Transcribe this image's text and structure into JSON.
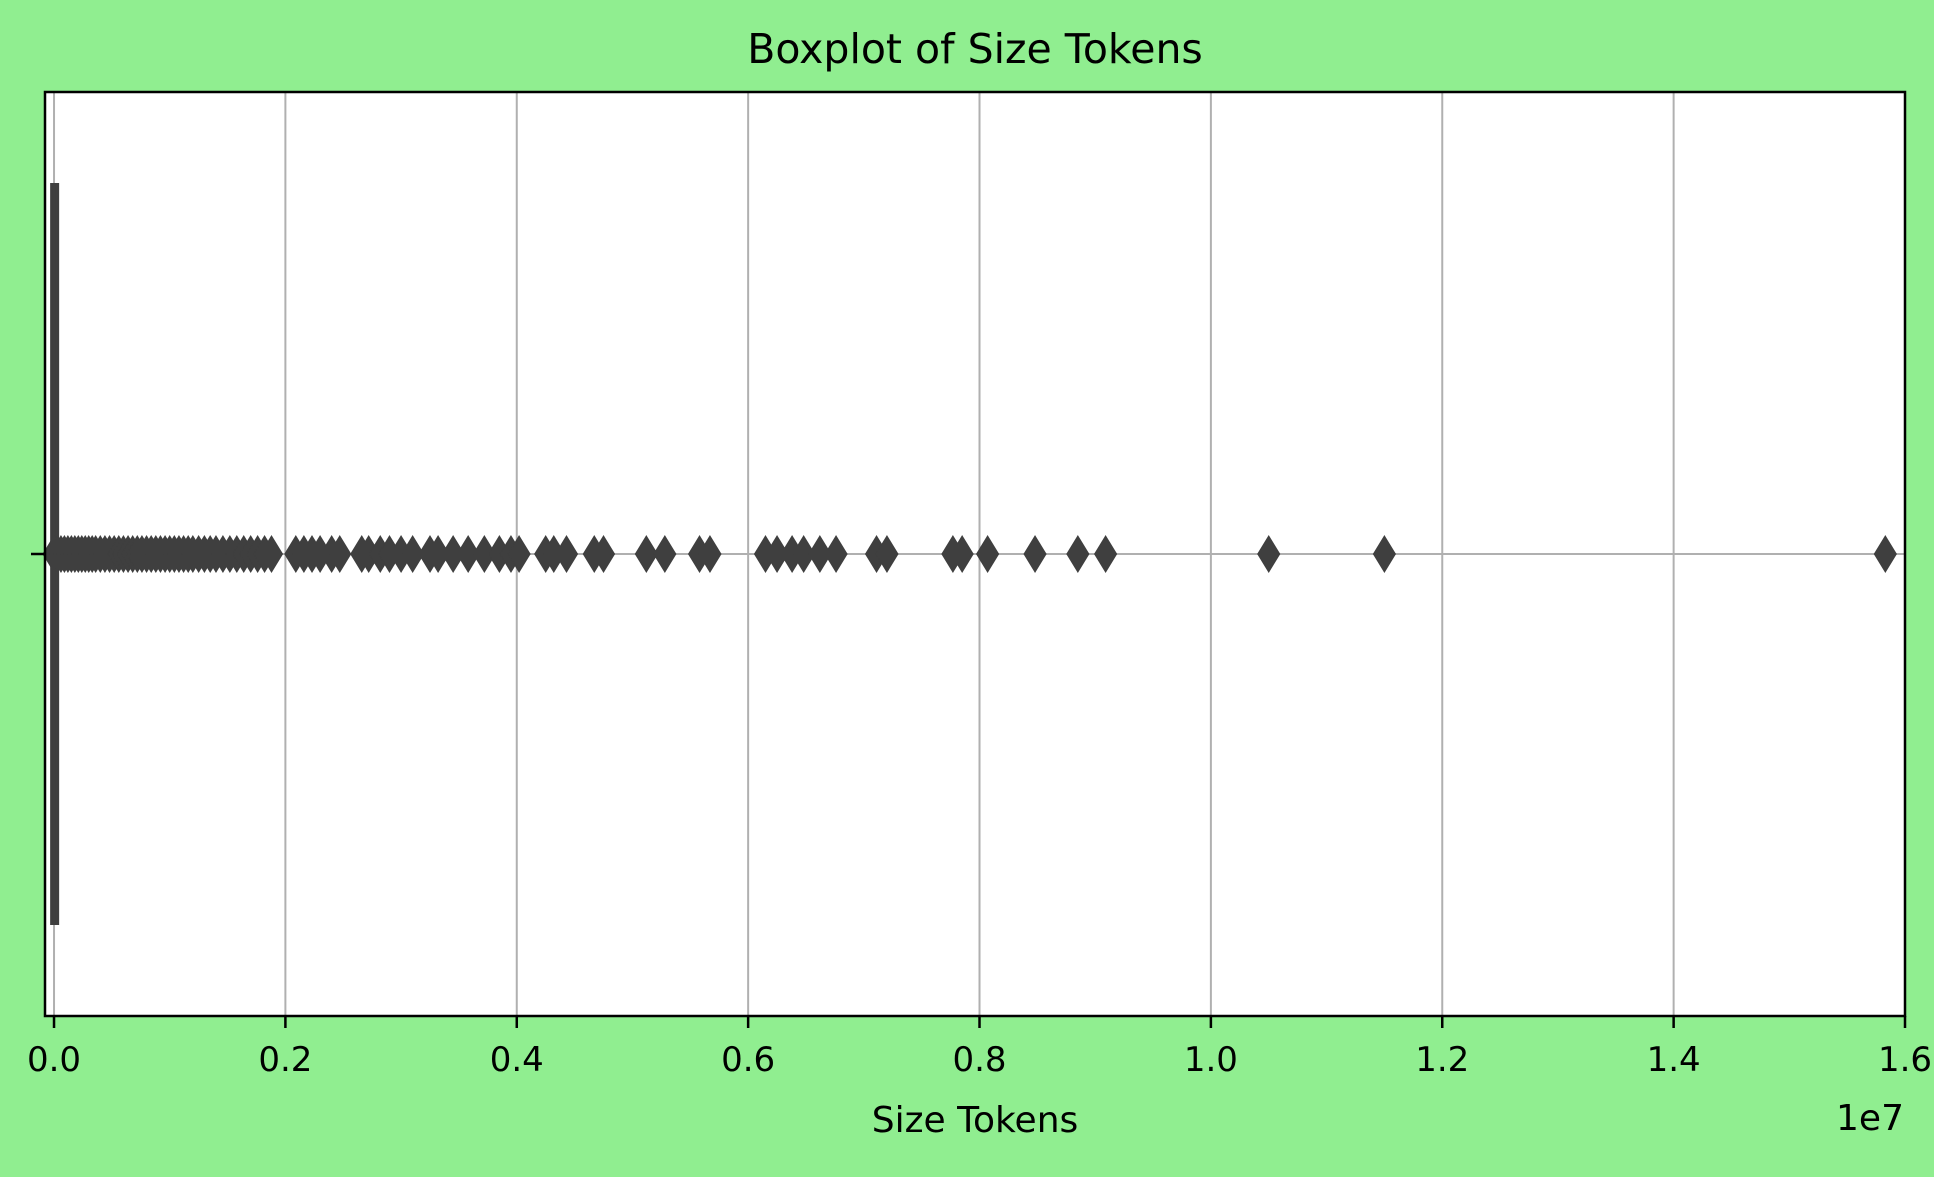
{
  "colors": {
    "figure_background": "#90EE90",
    "plot_background": "#FFFFFF",
    "grid": "#B0B0B0",
    "box": "#3F3F3F",
    "text": "#000000"
  },
  "chart_data": {
    "type": "boxplot",
    "orientation": "horizontal",
    "title": "Boxplot of Size Tokens",
    "xlabel": "Size Tokens",
    "ylabel": "",
    "offset_label": "1e7",
    "x_scale_multiplier": 10000000,
    "xlim": [
      -0.0078,
      1.6
    ],
    "xticks": [
      0.0,
      0.2,
      0.4,
      0.6,
      0.8,
      1.0,
      1.2,
      1.4,
      1.6
    ],
    "xtick_labels": [
      "0.0",
      "0.2",
      "0.4",
      "0.6",
      "0.8",
      "1.0",
      "1.2",
      "1.4",
      "1.6"
    ],
    "grid": true,
    "yticks": [
      0
    ],
    "box": {
      "q1": 0.0001,
      "median": 0.0002,
      "q3": 0.0004,
      "whisker_low": 0.0,
      "whisker_high": 0.0008
    },
    "outliers": [
      0.0,
      0.003,
      0.006,
      0.009,
      0.012,
      0.015,
      0.018,
      0.021,
      0.024,
      0.027,
      0.03,
      0.033,
      0.036,
      0.04,
      0.044,
      0.048,
      0.052,
      0.056,
      0.06,
      0.064,
      0.068,
      0.072,
      0.076,
      0.08,
      0.084,
      0.088,
      0.092,
      0.096,
      0.1,
      0.104,
      0.108,
      0.112,
      0.116,
      0.12,
      0.125,
      0.13,
      0.135,
      0.14,
      0.146,
      0.152,
      0.158,
      0.164,
      0.17,
      0.176,
      0.182,
      0.188,
      0.209,
      0.216,
      0.223,
      0.23,
      0.24,
      0.247,
      0.266,
      0.272,
      0.282,
      0.29,
      0.3,
      0.31,
      0.325,
      0.332,
      0.345,
      0.358,
      0.372,
      0.385,
      0.395,
      0.402,
      0.425,
      0.432,
      0.443,
      0.467,
      0.475,
      0.512,
      0.528,
      0.558,
      0.567,
      0.615,
      0.625,
      0.638,
      0.648,
      0.662,
      0.676,
      0.711,
      0.72,
      0.777,
      0.785,
      0.807,
      0.848,
      0.885,
      0.909,
      1.05,
      1.15,
      1.583
    ]
  }
}
